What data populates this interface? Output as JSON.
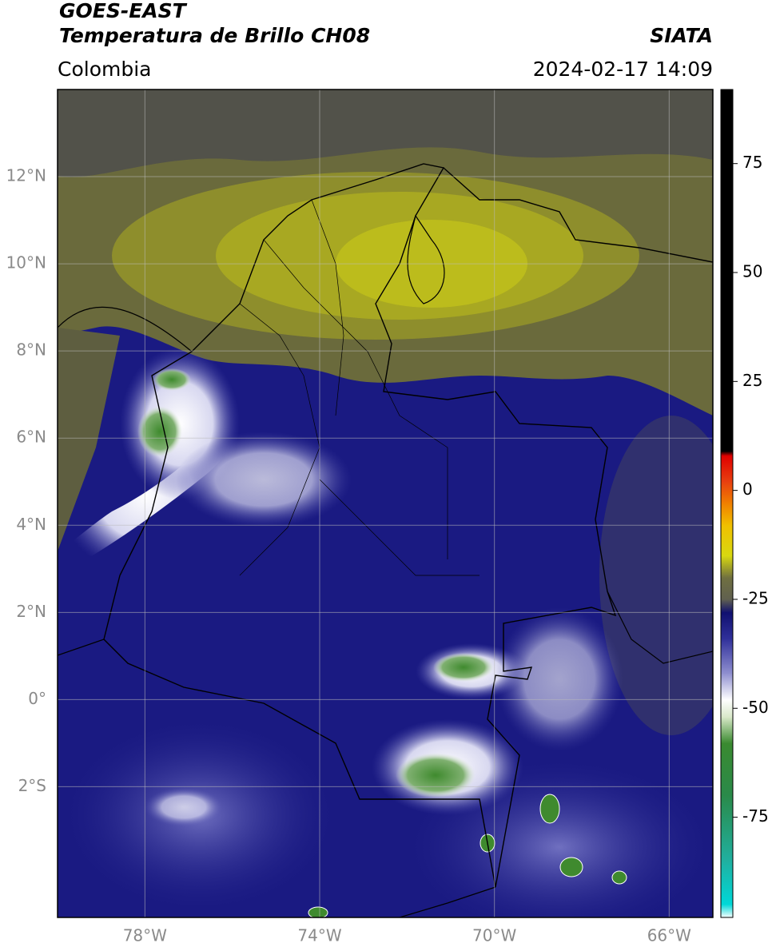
{
  "header": {
    "title": "GOES-EAST",
    "subtitle": "Temperatura de Brillo CH08",
    "source": "SIATA",
    "region": "Colombia",
    "datetime": "2024-02-17 14:09"
  },
  "map": {
    "xlim": [
      -80,
      -65
    ],
    "ylim": [
      -5,
      14
    ],
    "grid": true,
    "xticks": [
      {
        "value": -78,
        "label": "78°W"
      },
      {
        "value": -74,
        "label": "74°W"
      },
      {
        "value": -70,
        "label": "70°W"
      },
      {
        "value": -66,
        "label": "66°W"
      }
    ],
    "yticks": [
      {
        "value": 12,
        "label": "12°N"
      },
      {
        "value": 10,
        "label": "10°N"
      },
      {
        "value": 8,
        "label": "8°N"
      },
      {
        "value": 6,
        "label": "6°N"
      },
      {
        "value": 4,
        "label": "4°N"
      },
      {
        "value": 2,
        "label": "2°N"
      },
      {
        "value": 0,
        "label": "0°"
      },
      {
        "value": -2,
        "label": "2°S"
      }
    ]
  },
  "colorbar": {
    "lim": [
      -98,
      92
    ],
    "ticks": [
      75,
      50,
      25,
      0,
      -25,
      -50,
      -75
    ],
    "stops": [
      {
        "value": -98,
        "color": "#ffffff"
      },
      {
        "value": -95,
        "color": "#00d8d8"
      },
      {
        "value": -85,
        "color": "#20b0a0"
      },
      {
        "value": -70,
        "color": "#2a8a4a"
      },
      {
        "value": -58,
        "color": "#3a8a30"
      },
      {
        "value": -52,
        "color": "#d8e8c8"
      },
      {
        "value": -48,
        "color": "#ffffff"
      },
      {
        "value": -42,
        "color": "#9090d0"
      },
      {
        "value": -34,
        "color": "#30309a"
      },
      {
        "value": -28,
        "color": "#101070"
      },
      {
        "value": -25,
        "color": "#606050"
      },
      {
        "value": -20,
        "color": "#707040"
      },
      {
        "value": -15,
        "color": "#d8d810"
      },
      {
        "value": -8,
        "color": "#f0c000"
      },
      {
        "value": -3,
        "color": "#f08000"
      },
      {
        "value": 2,
        "color": "#e84010"
      },
      {
        "value": 8,
        "color": "#e00000"
      },
      {
        "value": 9,
        "color": "#000000"
      },
      {
        "value": 92,
        "color": "#000000"
      }
    ]
  }
}
